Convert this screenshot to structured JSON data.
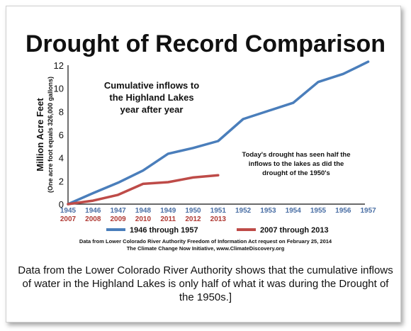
{
  "chart_data": {
    "type": "line",
    "title": "Drought of Record Comparison",
    "ylabel": "Million Acre Feet",
    "ylabel_sub": "(One acre foot equals 326,000 gallons)",
    "ylim": [
      0,
      12
    ],
    "yticks": [
      "0",
      "2",
      "4",
      "6",
      "8",
      "10",
      "12"
    ],
    "x_top": [
      "1945",
      "1946",
      "1947",
      "1948",
      "1949",
      "1950",
      "1951",
      "1952",
      "1953",
      "1954",
      "1955",
      "1956",
      "1957"
    ],
    "x_bottom": [
      "2007",
      "2008",
      "2009",
      "2010",
      "2011",
      "2012",
      "2013"
    ],
    "series": [
      {
        "name": "1946 through 1957",
        "color": "#4a7ebb",
        "values": [
          0,
          0.95,
          1.85,
          2.9,
          4.35,
          4.85,
          5.45,
          7.35,
          8.05,
          8.75,
          10.55,
          11.25,
          12.3
        ]
      },
      {
        "name": "2007 through 2013",
        "color": "#be4b48",
        "values": [
          0,
          0.3,
          0.8,
          1.75,
          1.9,
          2.3,
          2.5
        ]
      }
    ],
    "annotations": [
      "Cumulative inflows to",
      "the Highland Lakes",
      "year after year",
      "Today's drought has seen half the",
      "inflows to the lakes as did the",
      "drought of the 1950's"
    ],
    "source_lines": [
      "Data from Lower Colorado River Authority Freedom of Information Act request on February 25, 2014",
      "The Climate Change Now Initiative, www.ClimateDiscovery.org"
    ],
    "grid": false,
    "legend_position": "bottom"
  },
  "caption": "Data from the Lower Colorado River Authority shows that the cumulative inflows of water in the Highland Lakes is only half of what it was during the Drought of the 1950s.]"
}
